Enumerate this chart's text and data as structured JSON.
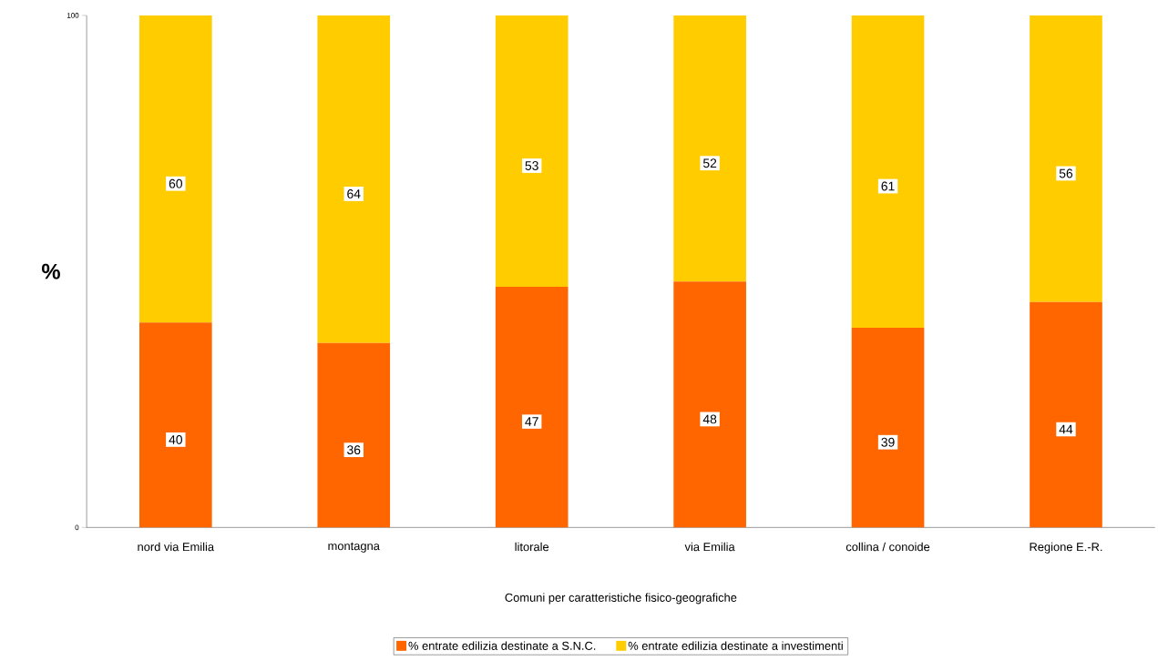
{
  "chart_data": {
    "type": "bar",
    "stacked": true,
    "xlabel": "Comuni per caratteristiche fisico-geografiche",
    "ylabel": "%",
    "categories": [
      "nord via Emilia",
      "montagna",
      "litorale",
      "via Emilia",
      "collina / conoide",
      "Regione E.-R."
    ],
    "series": [
      {
        "name": "% entrate edilizia destinate a S.N.C.",
        "color": "#ff6600",
        "values": [
          40,
          36,
          47,
          48,
          39,
          44
        ]
      },
      {
        "name": "% entrate edilizia destinate a investimenti",
        "color": "#ffcc00",
        "values": [
          60,
          64,
          53,
          52,
          61,
          56
        ]
      }
    ],
    "ylim": [
      0,
      100
    ],
    "yticks": [
      0,
      100
    ],
    "data_labels": true,
    "legend": "bottom"
  }
}
